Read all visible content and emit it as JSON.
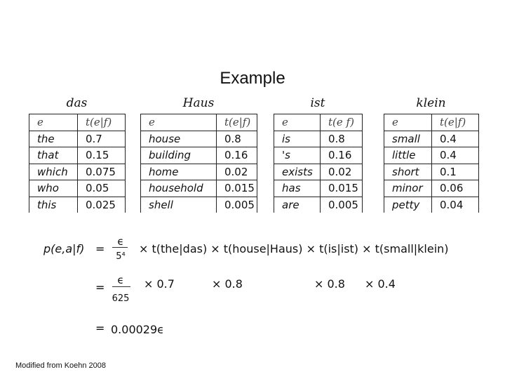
{
  "title": "Example",
  "tables": [
    {
      "word": "das",
      "header": [
        "e",
        "t(e|f)"
      ],
      "rows": [
        [
          "the",
          "0.7"
        ],
        [
          "that",
          "0.15"
        ],
        [
          "which",
          "0.075"
        ],
        [
          "who",
          "0.05"
        ],
        [
          "this",
          "0.025"
        ]
      ]
    },
    {
      "word": "Haus",
      "header": [
        "e",
        "t(e|f)"
      ],
      "rows": [
        [
          "house",
          "0.8"
        ],
        [
          "building",
          "0.16"
        ],
        [
          "home",
          "0.02"
        ],
        [
          "household",
          "0.015"
        ],
        [
          "shell",
          "0.005"
        ]
      ]
    },
    {
      "word": "ist",
      "header": [
        "e",
        "t(e f)"
      ],
      "rows": [
        [
          "is",
          "0.8"
        ],
        [
          "'s",
          "0.16"
        ],
        [
          "exists",
          "0.02"
        ],
        [
          "has",
          "0.015"
        ],
        [
          "are",
          "0.005"
        ]
      ]
    },
    {
      "word": "klein",
      "header": [
        "e",
        "t(e|f)"
      ],
      "rows": [
        [
          "small",
          "0.4"
        ],
        [
          "little",
          "0.4"
        ],
        [
          "short",
          "0.1"
        ],
        [
          "minor",
          "0.06"
        ],
        [
          "petty",
          "0.04"
        ]
      ]
    }
  ],
  "formula": {
    "lhs": "p(e,a|f)",
    "eq": "=",
    "line1_num": "ϵ",
    "line1_den": "5⁴",
    "line1_rest": "× t(the|das) × t(house|Haus) × t(is|ist) × t(small|klein)",
    "line2_num": "ϵ",
    "line2_den": "625",
    "line2_terms": [
      "× 0.7",
      "× 0.8",
      "× 0.8",
      "× 0.4"
    ],
    "line3": "0.00029ϵ"
  },
  "credit": "Modified from Koehn 2008"
}
